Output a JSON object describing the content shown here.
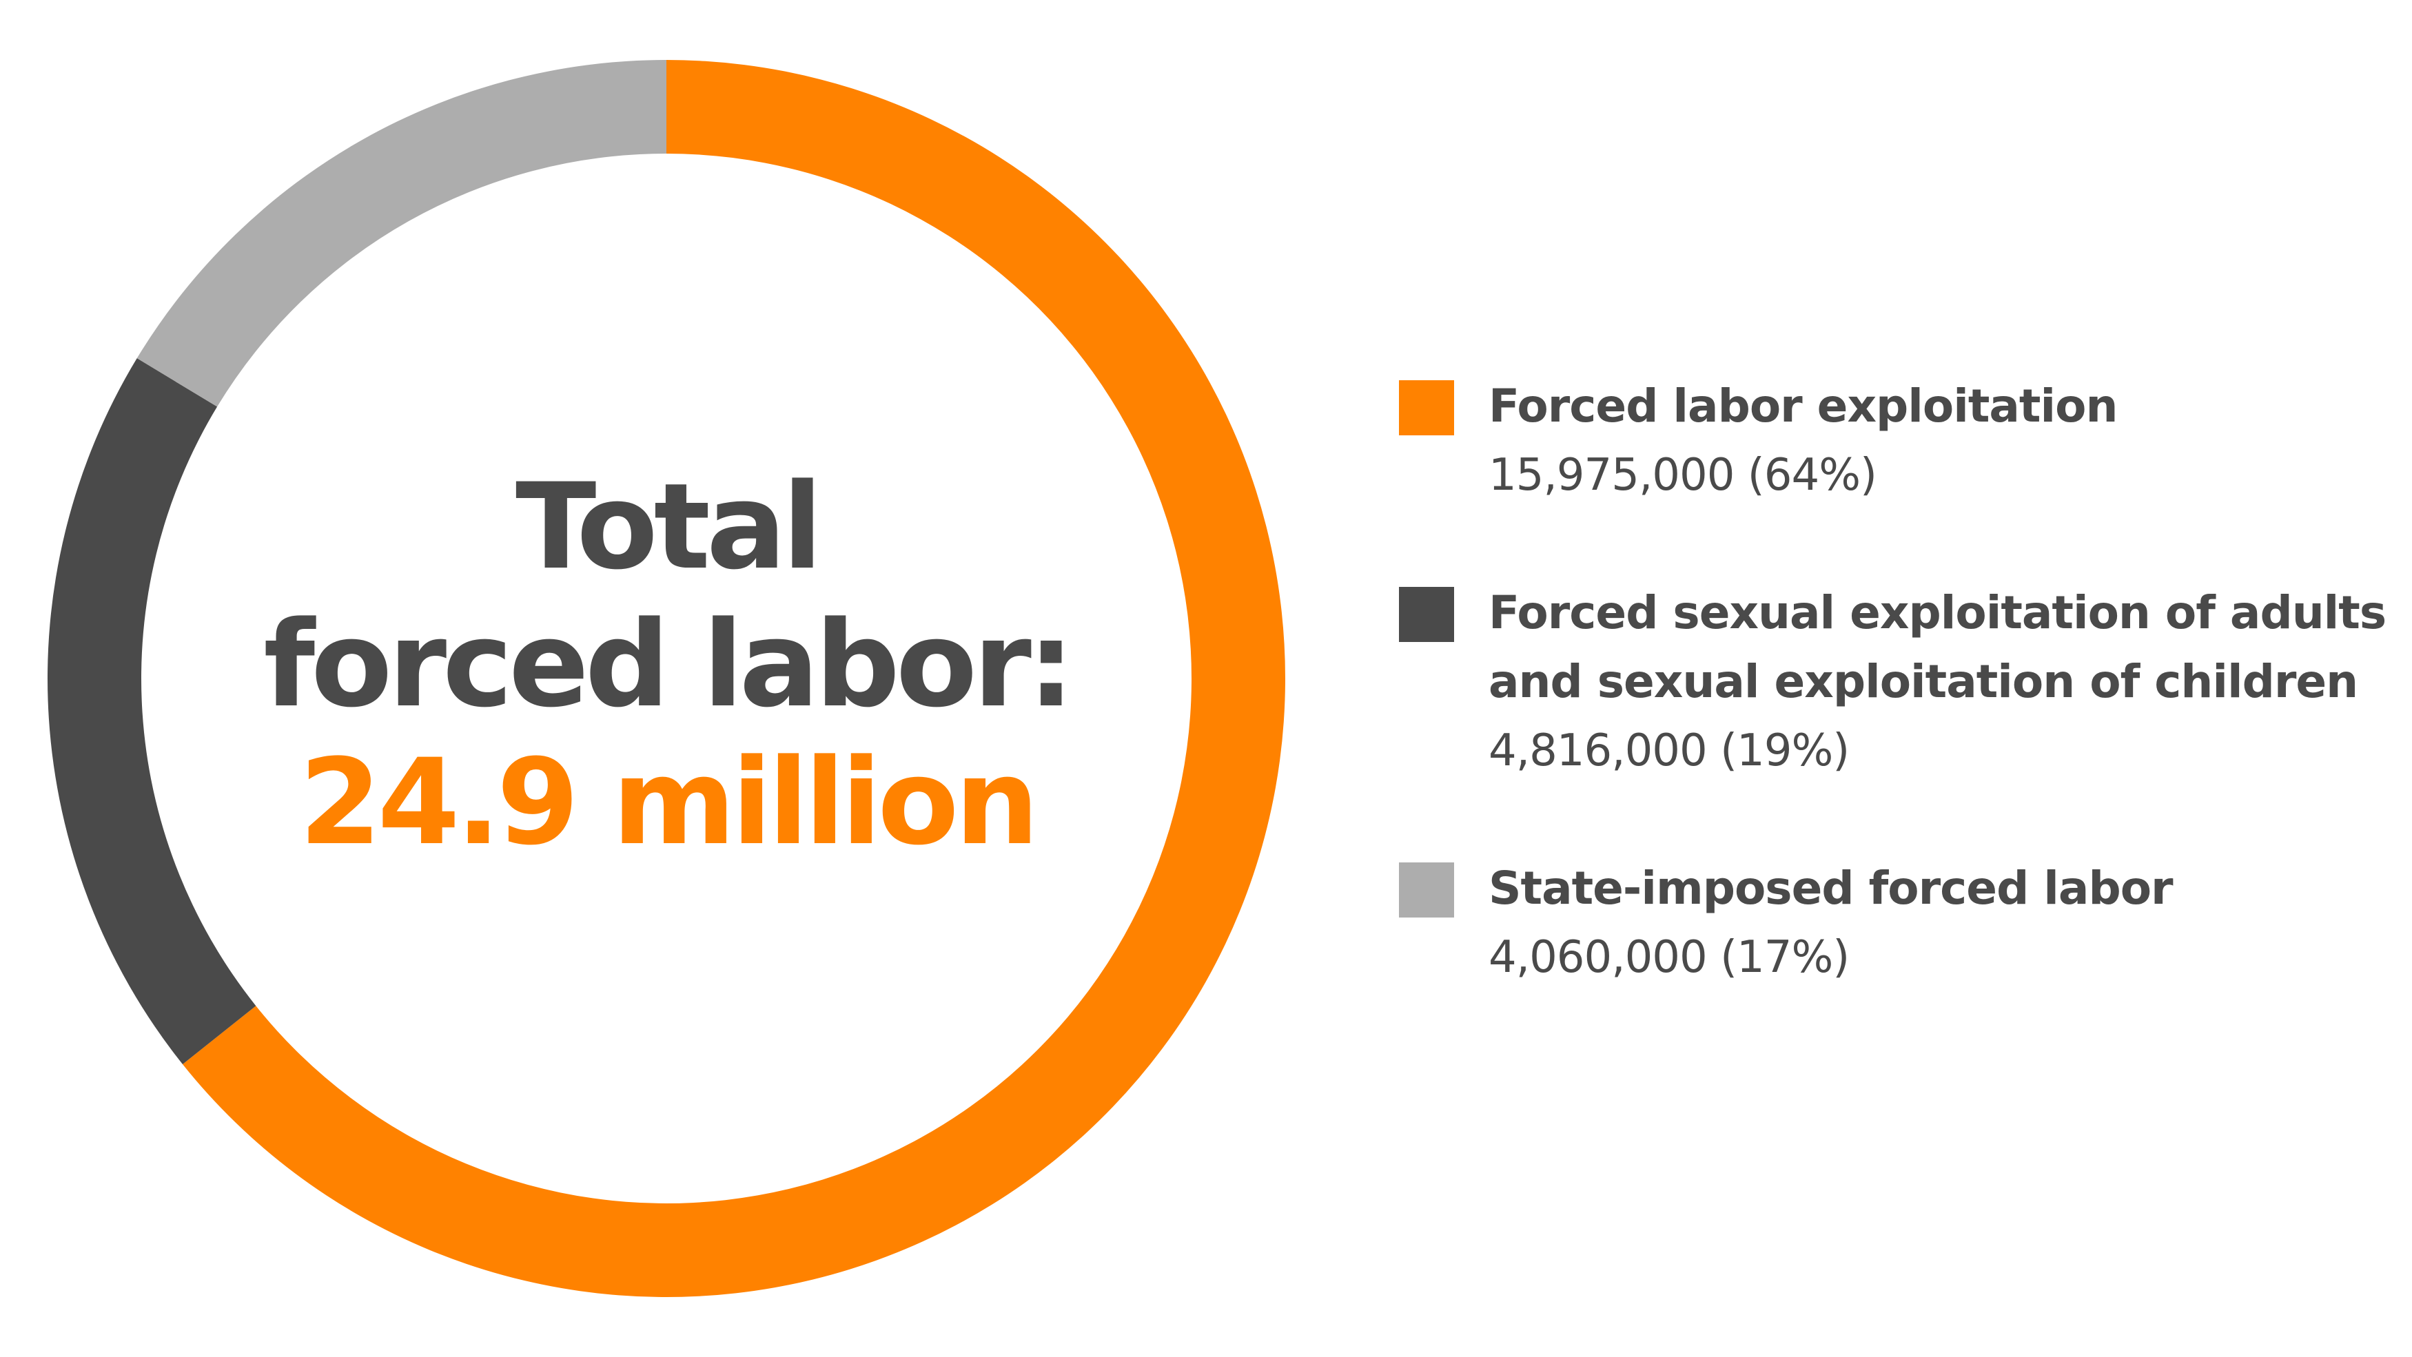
{
  "center": {
    "line1": "Total",
    "line2": "forced labor:",
    "line3": "24.9 million"
  },
  "colors": {
    "orange": "#ff8200",
    "dark_gray": "#4a4a4a",
    "light_gray": "#adadad",
    "text": "#4a4a4a"
  },
  "legend": [
    {
      "label": "Forced labor exploitation",
      "value": "15,975,000 (64%)"
    },
    {
      "label": "Forced sexual exploitation of adults\nand sexual exploitation of children",
      "value": "4,816,000 (19%)"
    },
    {
      "label": "State-imposed forced labor",
      "value": "4,060,000 (17%)"
    }
  ],
  "chart_data": {
    "type": "pie",
    "variant": "donut",
    "title": "Total forced labor: 24.9 million",
    "categories": [
      "Forced labor exploitation",
      "Forced sexual exploitation of adults and sexual exploitation of children",
      "State-imposed forced labor"
    ],
    "values": [
      15975000,
      4816000,
      4060000
    ],
    "percentages": [
      64,
      19,
      17
    ],
    "colors": [
      "#ff8200",
      "#4a4a4a",
      "#adadad"
    ],
    "start": "top",
    "direction": "clockwise",
    "legend_position": "right"
  }
}
